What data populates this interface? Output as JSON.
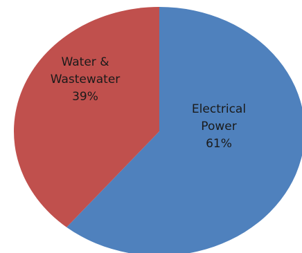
{
  "chart_data": {
    "type": "pie",
    "title": "",
    "slices": [
      {
        "label_lines": [
          "Electrical",
          "Power"
        ],
        "value": 61,
        "value_label": "61%",
        "color": "#4f81bd"
      },
      {
        "label_lines": [
          "Water &",
          "Wastewater"
        ],
        "value": 39,
        "value_label": "39%",
        "color": "#c0504d"
      }
    ],
    "start_angle_deg": 0,
    "direction": "clockwise",
    "legend": "none"
  }
}
